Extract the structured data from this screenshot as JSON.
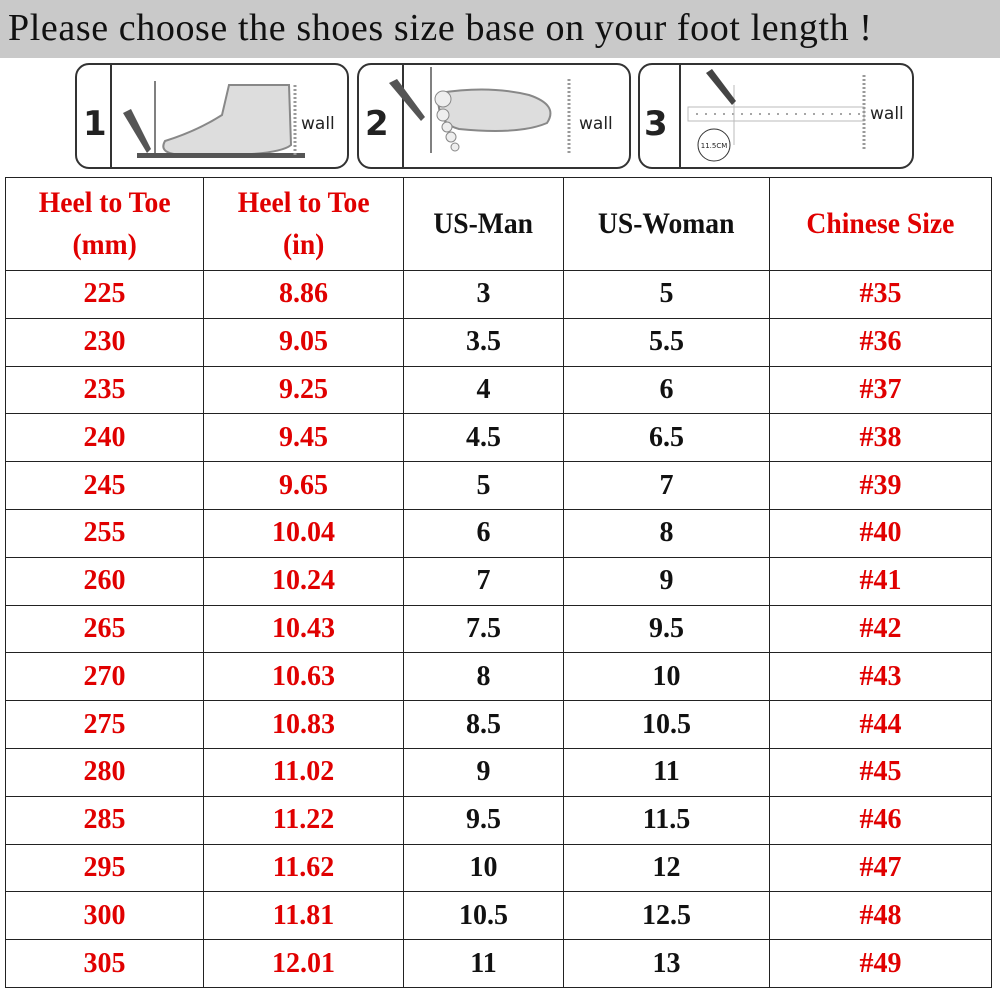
{
  "title": "Please choose the shoes size base on your foot length !",
  "steps": [
    {
      "number": "1",
      "label": "wall"
    },
    {
      "number": "2",
      "label": "wall"
    },
    {
      "number": "3",
      "label": "wall",
      "badge": "11.5CM"
    }
  ],
  "colors": {
    "accent_red": "#e00000",
    "text": "#111111",
    "title_bg": "#c9c9c9"
  },
  "table": {
    "headers": [
      {
        "line1": "Heel to Toe",
        "line2": "(mm)"
      },
      {
        "line1": "Heel to Toe",
        "line2": "(in)"
      },
      {
        "line1": "US-Man",
        "line2": ""
      },
      {
        "line1": "US-Woman",
        "line2": ""
      },
      {
        "line1": "Chinese Size",
        "line2": ""
      }
    ],
    "rows": [
      [
        "225",
        "8.86",
        "3",
        "5",
        "#35"
      ],
      [
        "230",
        "9.05",
        "3.5",
        "5.5",
        "#36"
      ],
      [
        "235",
        "9.25",
        "4",
        "6",
        "#37"
      ],
      [
        "240",
        "9.45",
        "4.5",
        "6.5",
        "#38"
      ],
      [
        "245",
        "9.65",
        "5",
        "7",
        "#39"
      ],
      [
        "255",
        "10.04",
        "6",
        "8",
        "#40"
      ],
      [
        "260",
        "10.24",
        "7",
        "9",
        "#41"
      ],
      [
        "265",
        "10.43",
        "7.5",
        "9.5",
        "#42"
      ],
      [
        "270",
        "10.63",
        "8",
        "10",
        "#43"
      ],
      [
        "275",
        "10.83",
        "8.5",
        "10.5",
        "#44"
      ],
      [
        "280",
        "11.02",
        "9",
        "11",
        "#45"
      ],
      [
        "285",
        "11.22",
        "9.5",
        "11.5",
        "#46"
      ],
      [
        "295",
        "11.62",
        "10",
        "12",
        "#47"
      ],
      [
        "300",
        "11.81",
        "10.5",
        "12.5",
        "#48"
      ],
      [
        "305",
        "12.01",
        "11",
        "13",
        "#49"
      ]
    ]
  }
}
